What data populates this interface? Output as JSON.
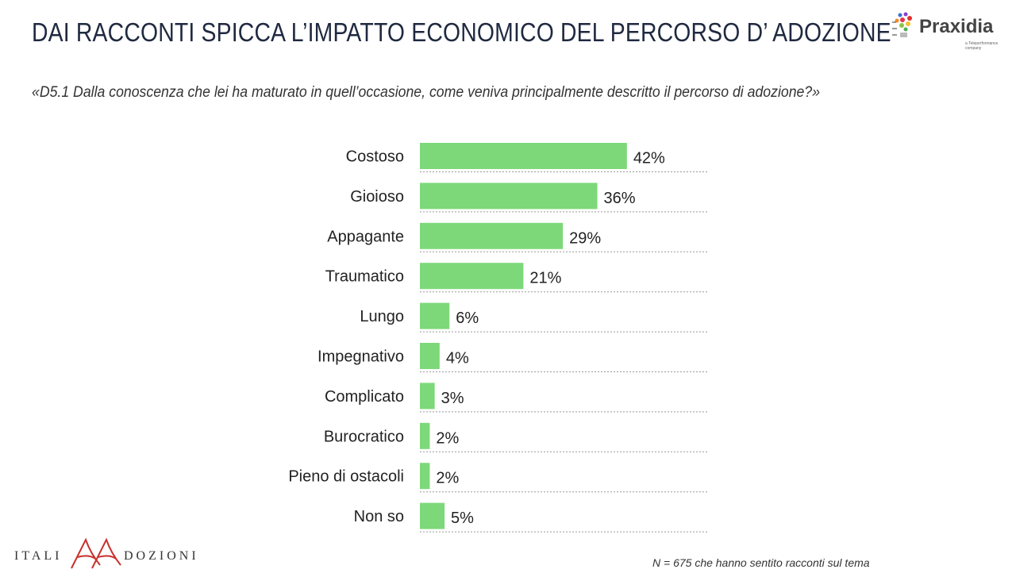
{
  "header": {
    "title": "DAI RACCONTI SPICCA L’IMPATTO ECONOMICO DEL PERCORSO D’ ADOZIONE",
    "question": "«D5.1 Dalla conoscenza che lei ha maturato in quell’occasione, come veniva principalmente descritto il percorso di adozione?»"
  },
  "logos": {
    "praxidia": "Praxidia",
    "praxidia_sub": "a Teleperformance company",
    "italiadozioni_left": "ITALI",
    "italiadozioni_right": "DOZIONI"
  },
  "footnote": "N = 675 che hanno sentito racconti sul tema",
  "chart_data": {
    "type": "bar",
    "orientation": "horizontal",
    "categories": [
      "Costoso",
      "Gioioso",
      "Appagante",
      "Traumatico",
      "Lungo",
      "Impegnativo",
      "Complicato",
      "Burocratico",
      "Pieno di ostacoli",
      "Non so"
    ],
    "values": [
      42,
      36,
      29,
      21,
      6,
      4,
      3,
      2,
      2,
      5
    ],
    "value_labels": [
      "42%",
      "36%",
      "29%",
      "21%",
      "6%",
      "4%",
      "3%",
      "2%",
      "2%",
      "5%"
    ],
    "unit": "%",
    "bar_color": "#7dd87a",
    "grid": false
  }
}
